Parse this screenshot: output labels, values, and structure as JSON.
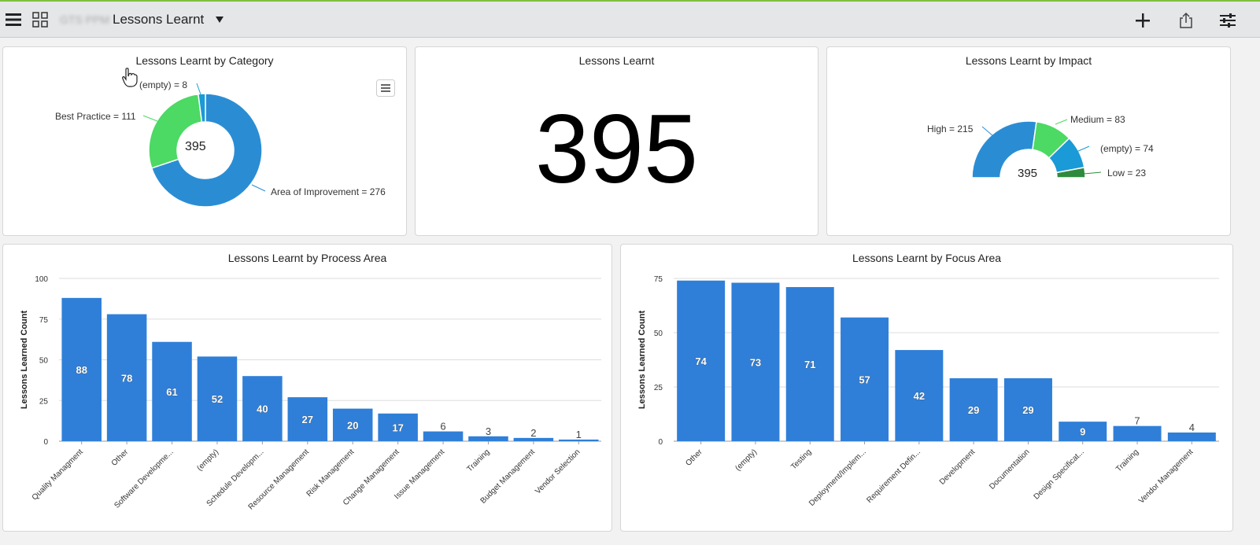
{
  "header": {
    "breadcrumb_prefix": "GTS PPM",
    "title": "Lessons Learnt",
    "icons": [
      "hamburger-menu-icon",
      "grid-icon",
      "caret-down-icon",
      "plus-icon",
      "share-icon",
      "settings-sliders-icon"
    ]
  },
  "colors": {
    "accent_top": "#7fbf3f",
    "bar": "#2f7fd8",
    "improvement": "#2a8dd4",
    "best_practice": "#4cd964",
    "empty": "#1a9ad6",
    "low": "#2e8b3e"
  },
  "category_chart": {
    "title": "Lessons Learnt by Category",
    "total": "395",
    "labels": {
      "empty": "(empty) = 8",
      "best": "Best Practice = 111",
      "improvement": "Area of Improvement = 276"
    }
  },
  "total_card": {
    "title": "Lessons Learnt",
    "value": "395"
  },
  "impact_chart": {
    "title": "Lessons Learnt by Impact",
    "total": "395",
    "labels": {
      "high": "High = 215",
      "medium": "Medium = 83",
      "empty": "(empty) = 74",
      "low": "Low = 23"
    }
  },
  "chart_data": [
    {
      "type": "pie",
      "title": "Lessons Learnt by Category",
      "categories": [
        "Area of Improvement",
        "Best Practice",
        "(empty)"
      ],
      "values": [
        276,
        111,
        8
      ]
    },
    {
      "type": "pie",
      "title": "Lessons Learnt by Impact",
      "categories": [
        "High",
        "Medium",
        "(empty)",
        "Low"
      ],
      "values": [
        215,
        83,
        74,
        23
      ]
    },
    {
      "type": "bar",
      "title": "Lessons Learnt by Process Area",
      "ylabel": "Lessons Learned Count",
      "ylim": [
        0,
        100
      ],
      "yticks": [
        0,
        25,
        50,
        75,
        100
      ],
      "categories": [
        "Quality Managment",
        "Other",
        "Software Developme...",
        "(empty)",
        "Schedule Developm...",
        "Resource Management",
        "Risk Management",
        "Change Management",
        "Issue Management",
        "Training",
        "Budget Management",
        "Vendor Selection"
      ],
      "values": [
        88,
        78,
        61,
        52,
        40,
        27,
        20,
        17,
        6,
        3,
        2,
        1
      ]
    },
    {
      "type": "bar",
      "title": "Lessons Learnt by Focus Area",
      "ylabel": "Lessons Learned Count",
      "ylim": [
        0,
        75
      ],
      "yticks": [
        0,
        25,
        50,
        75
      ],
      "categories": [
        "Other",
        "(empty)",
        "Testing",
        "Deployment/Implem...",
        "Requirement Defin...",
        "Development",
        "Documentation",
        "Design Specificat...",
        "Training",
        "Vendor Management"
      ],
      "values": [
        74,
        73,
        71,
        57,
        42,
        29,
        29,
        9,
        7,
        4
      ]
    }
  ]
}
